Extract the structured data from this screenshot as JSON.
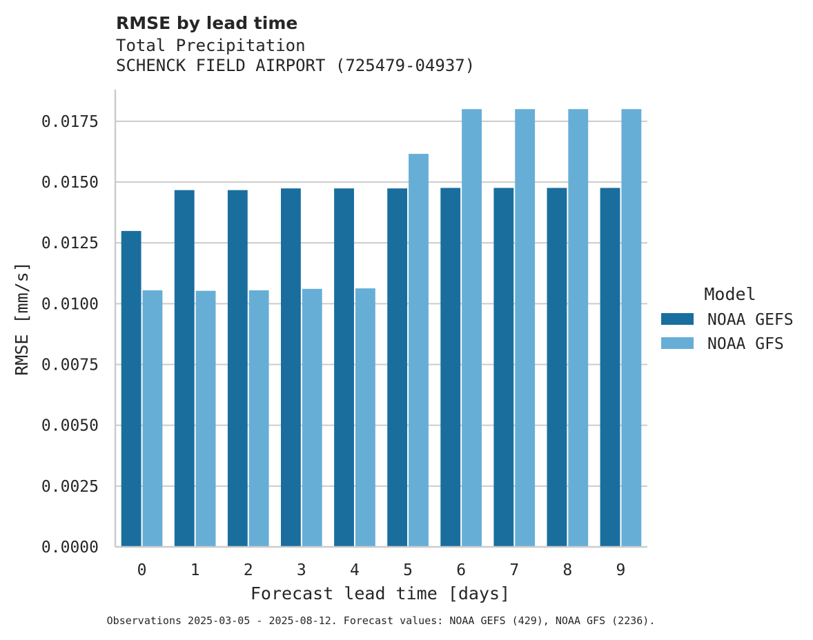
{
  "chart_data": {
    "type": "bar",
    "title": "RMSE by lead time",
    "subtitle_lines": [
      "Total Precipitation",
      "SCHENCK FIELD AIRPORT (725479-04937)"
    ],
    "xlabel": "Forecast lead time [days]",
    "ylabel": "RMSE [mm/s]",
    "categories": [
      "0",
      "1",
      "2",
      "3",
      "4",
      "5",
      "6",
      "7",
      "8",
      "9"
    ],
    "ylim": [
      0,
      0.0188
    ],
    "yticks": [
      0.0,
      0.0025,
      0.005,
      0.0075,
      0.01,
      0.0125,
      0.015,
      0.0175
    ],
    "ytick_labels": [
      "0.0000",
      "0.0025",
      "0.0050",
      "0.0075",
      "0.0100",
      "0.0125",
      "0.0150",
      "0.0175"
    ],
    "grid": "horizontal",
    "legend": {
      "title": "Model",
      "placement": "right"
    },
    "series": [
      {
        "name": "NOAA GEFS",
        "color": "#1a6e9e",
        "values": [
          0.01299,
          0.01467,
          0.01467,
          0.01474,
          0.01474,
          0.01474,
          0.01476,
          0.01476,
          0.01476,
          0.01476
        ]
      },
      {
        "name": "NOAA GFS",
        "color": "#67aed6",
        "values": [
          0.01055,
          0.01053,
          0.01055,
          0.01061,
          0.01063,
          0.01616,
          0.018,
          0.018,
          0.018,
          0.018
        ]
      }
    ],
    "footnote": "Observations 2025-03-05 - 2025-08-12. Forecast values: NOAA GEFS (429), NOAA GFS (2236)."
  }
}
